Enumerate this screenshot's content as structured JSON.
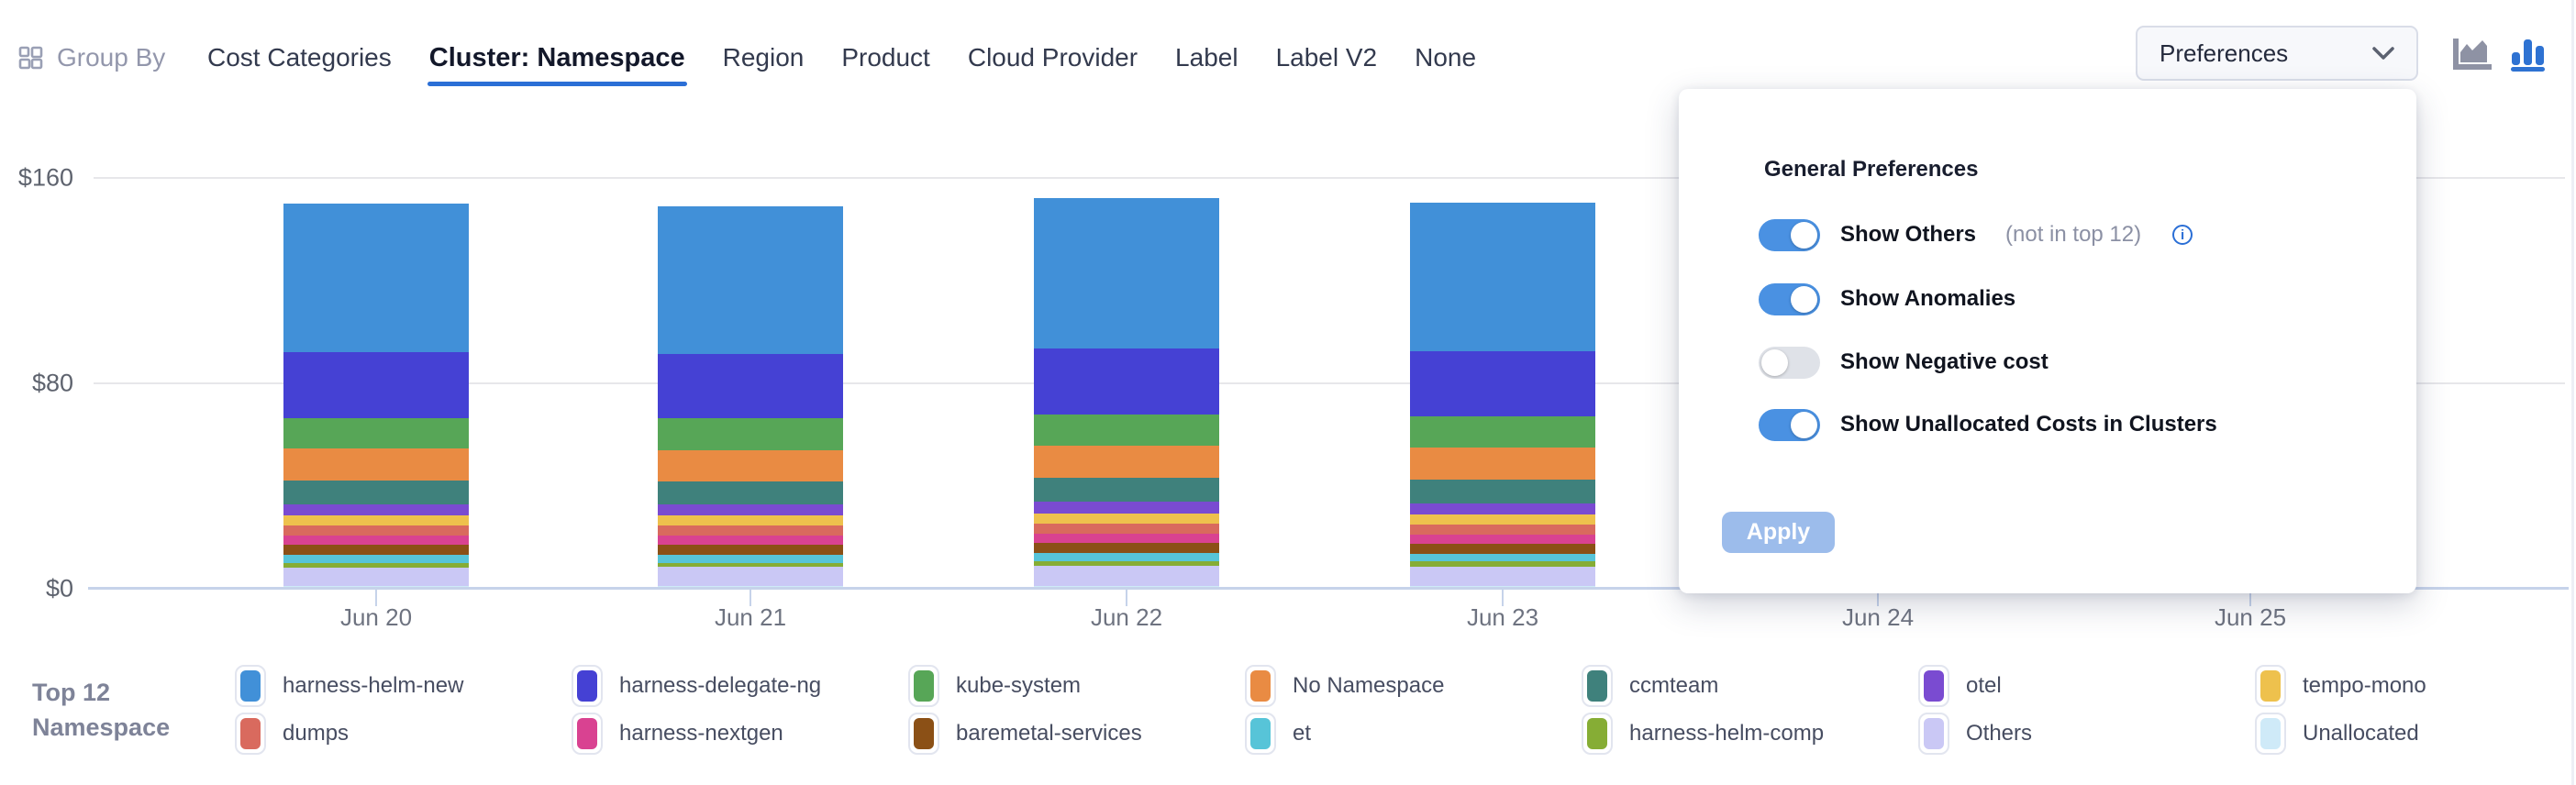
{
  "header": {
    "group_by_label": "Group By",
    "tabs": [
      {
        "label": "Cost Categories",
        "active": false
      },
      {
        "label": "Cluster: Namespace",
        "active": true
      },
      {
        "label": "Region",
        "active": false
      },
      {
        "label": "Product",
        "active": false
      },
      {
        "label": "Cloud Provider",
        "active": false
      },
      {
        "label": "Label",
        "active": false
      },
      {
        "label": "Label V2",
        "active": false
      },
      {
        "label": "None",
        "active": false
      }
    ],
    "preferences_label": "Preferences",
    "chart_type_toggle": {
      "options": [
        "area-chart",
        "bar-chart"
      ],
      "active": "bar-chart"
    }
  },
  "preferences_panel": {
    "title": "General Preferences",
    "toggles": [
      {
        "label": "Show Others",
        "suffix": "(not in top 12)",
        "has_info_icon": true,
        "on": true
      },
      {
        "label": "Show Anomalies",
        "suffix": "",
        "has_info_icon": false,
        "on": true
      },
      {
        "label": "Show Negative cost",
        "suffix": "",
        "has_info_icon": false,
        "on": false
      },
      {
        "label": "Show Unallocated Costs in Clusters",
        "suffix": "",
        "has_info_icon": false,
        "on": true
      }
    ],
    "apply_label": "Apply"
  },
  "chart_data": {
    "type": "stacked-bar",
    "title": "",
    "unit": "USD",
    "categories": [
      "Jun 20",
      "Jun 21",
      "Jun 22",
      "Jun 23",
      "Jun 24",
      "Jun 25"
    ],
    "days_with_visible_bars": [
      "Jun 20",
      "Jun 21",
      "Jun 22",
      "Jun 23"
    ],
    "ylim": [
      0,
      160
    ],
    "yticks": [
      {
        "label": "$0",
        "value": 0
      },
      {
        "label": "$80",
        "value": 80
      },
      {
        "label": "$160",
        "value": 160
      }
    ],
    "grid": true,
    "legend_position": "bottom",
    "series": [
      {
        "name": "harness-helm-new",
        "color": "#4190d8",
        "values": [
          57.9,
          57.3,
          58.3,
          57.8
        ]
      },
      {
        "name": "harness-delegate-ng",
        "color": "#4541d4",
        "values": [
          25.5,
          25.2,
          25.7,
          25.4
        ]
      },
      {
        "name": "kube-system",
        "color": "#57a657",
        "values": [
          12.0,
          12.3,
          12.2,
          12.1
        ]
      },
      {
        "name": "No Namespace",
        "color": "#e98b43",
        "values": [
          12.4,
          12.1,
          12.5,
          12.3
        ]
      },
      {
        "name": "ccmteam",
        "color": "#3f817c",
        "values": [
          9.4,
          9.1,
          9.5,
          9.3
        ]
      },
      {
        "name": "otel",
        "color": "#7a4bd1",
        "values": [
          4.3,
          4.4,
          4.4,
          4.3
        ]
      },
      {
        "name": "tempo-mono",
        "color": "#eec14d",
        "values": [
          3.9,
          3.8,
          4.0,
          3.9
        ]
      },
      {
        "name": "dumps",
        "color": "#d96a5e",
        "values": [
          3.9,
          4.0,
          4.0,
          3.9
        ]
      },
      {
        "name": "harness-nextgen",
        "color": "#d94291",
        "values": [
          3.6,
          3.6,
          3.7,
          3.6
        ]
      },
      {
        "name": "baremetal-services",
        "color": "#8b5016",
        "values": [
          3.9,
          3.8,
          3.8,
          3.9
        ]
      },
      {
        "name": "et",
        "color": "#57c4d8",
        "values": [
          3.2,
          3.1,
          3.2,
          3.1
        ]
      },
      {
        "name": "harness-helm-comp",
        "color": "#86ad35",
        "values": [
          1.8,
          1.7,
          1.7,
          1.9
        ]
      },
      {
        "name": "Others",
        "color": "#cac8f5",
        "values": [
          7.0,
          7.4,
          8.0,
          7.6
        ]
      },
      {
        "name": "Unallocated",
        "color": "#cfeaf8",
        "values": [
          1.1,
          1.0,
          1.0,
          1.1
        ]
      }
    ]
  },
  "legend": {
    "title_line1": "Top 12",
    "title_line2": "Namespace"
  },
  "colors": {
    "accent_blue": "#2b6fd6",
    "toggle_on": "#4a91e2",
    "toggle_off": "#dfe2e8",
    "apply_disabled": "#9cbceb",
    "inactive_icon_gray": "#8e92a4"
  }
}
